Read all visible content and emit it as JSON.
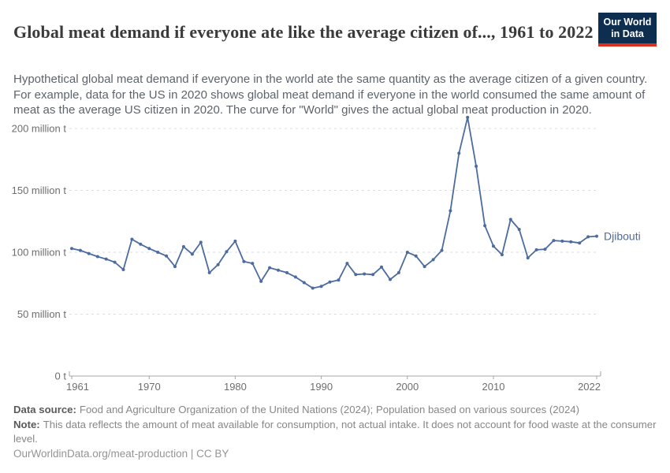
{
  "header": {
    "title": "Global meat demand if everyone ate like the average citizen of..., 1961 to 2022",
    "logo": {
      "line1": "Our World",
      "line2": "in Data"
    }
  },
  "subtitle": "Hypothetical global meat demand if everyone in the world ate the same quantity as the average citizen of a given country. For example, data for the US in 2020 shows global meat demand if everyone in the world consumed the same amount of meat as the average US citizen in 2020. The curve for \"World\" gives the actual global meat production in 2020.",
  "chart_data": {
    "type": "line",
    "title": "Global meat demand if everyone ate like the average citizen of..., 1961 to 2022",
    "unit": "million t",
    "xlabel": "",
    "ylabel": "",
    "xlim": [
      1961,
      2022
    ],
    "ylim": [
      0,
      215
    ],
    "grid": "horizontal-dashed",
    "legend_position": "end-of-line-label",
    "x_ticks": [
      1961,
      1970,
      1980,
      1990,
      2000,
      2010,
      2022
    ],
    "y_ticks": [
      {
        "value": 0,
        "label": "0 t"
      },
      {
        "value": 50,
        "label": "50 million t"
      },
      {
        "value": 100,
        "label": "100 million t"
      },
      {
        "value": 150,
        "label": "150 million t"
      },
      {
        "value": 200,
        "label": "200 million t"
      }
    ],
    "x": [
      1961,
      1962,
      1963,
      1964,
      1965,
      1966,
      1967,
      1968,
      1969,
      1970,
      1971,
      1972,
      1973,
      1974,
      1975,
      1976,
      1977,
      1978,
      1979,
      1980,
      1981,
      1982,
      1983,
      1984,
      1985,
      1986,
      1987,
      1988,
      1989,
      1990,
      1991,
      1992,
      1993,
      1994,
      1995,
      1996,
      1997,
      1998,
      1999,
      2000,
      2001,
      2002,
      2003,
      2004,
      2005,
      2006,
      2007,
      2008,
      2009,
      2010,
      2011,
      2012,
      2013,
      2014,
      2015,
      2016,
      2017,
      2018,
      2019,
      2020,
      2021,
      2022
    ],
    "series": [
      {
        "name": "Djibouti",
        "color": "#4c6b9e",
        "values": [
          103,
          101.5,
          99,
          96.5,
          94.5,
          92,
          86,
          110.5,
          106.5,
          103,
          100,
          97,
          88.5,
          104.5,
          98.5,
          108,
          83.5,
          90,
          100.5,
          109,
          92.5,
          91,
          76.5,
          87.5,
          85.5,
          83.5,
          80,
          75.5,
          71,
          72.5,
          76,
          77.5,
          91,
          82,
          82.5,
          82,
          88,
          78,
          83.5,
          100,
          97,
          88.5,
          94,
          101.5,
          133.5,
          180,
          209,
          169.5,
          121.5,
          105,
          98,
          126.5,
          118.5,
          95.5,
          102,
          102.5,
          109.5,
          109,
          108.5,
          107.5,
          112.5,
          113
        ]
      }
    ]
  },
  "footer": {
    "data_source_label": "Data source:",
    "data_source": "Food and Agriculture Organization of the United Nations (2024); Population based on various sources (2024)",
    "note_label": "Note:",
    "note": "This data reflects the amount of meat available for consumption, not actual intake. It does not account for food waste at the consumer level.",
    "citation": "OurWorldinData.org/meat-production | CC BY"
  },
  "colors": {
    "line": "#4c6b9e",
    "logo_background": "#0d2e4e",
    "logo_accent": "#dc2f1f",
    "gridline": "#dcdcdc",
    "axis": "#a5a5a5"
  }
}
